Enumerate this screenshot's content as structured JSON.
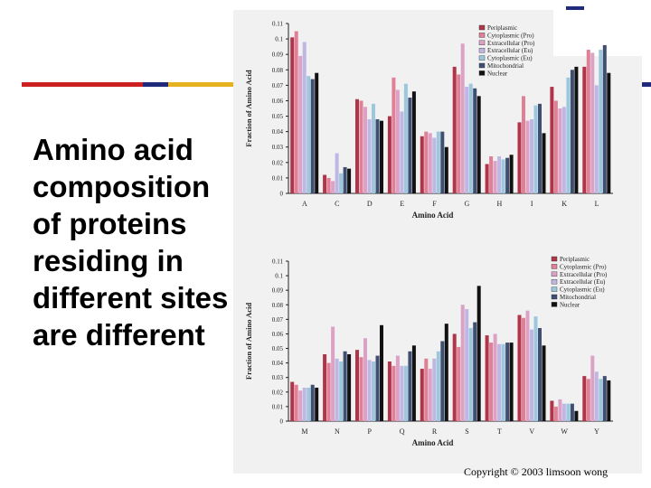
{
  "slide": {
    "title": "Amino acid composition of proteins residing in different sites are different",
    "copyright": "Copyright © 2003 limsoon wong",
    "stripe_colors": [
      "#cc1f1f",
      "#1f2a7a",
      "#e7b21f"
    ]
  },
  "chart_data": [
    {
      "type": "bar",
      "xlabel": "Amino Acid",
      "ylabel": "Fraction of Amino Acid",
      "ylim": [
        0,
        0.11
      ],
      "yticks": [
        "0",
        "0.01",
        "0.02",
        "0.03",
        "0.04",
        "0.05",
        "0.06",
        "0.07",
        "0.08",
        "0.09",
        "0.1",
        "0.11"
      ],
      "legend_position": "top-right",
      "categories": [
        "A",
        "C",
        "D",
        "E",
        "F",
        "G",
        "H",
        "I",
        "K",
        "L"
      ],
      "series": [
        {
          "name": "Periplasmic",
          "color": "#b0344a",
          "values": [
            0.101,
            0.012,
            0.061,
            0.05,
            0.037,
            0.082,
            0.019,
            0.046,
            0.069,
            0.082
          ]
        },
        {
          "name": "Cytoplasmic (Pro)",
          "color": "#e07f96",
          "values": [
            0.105,
            0.01,
            0.06,
            0.075,
            0.04,
            0.077,
            0.024,
            0.063,
            0.06,
            0.093
          ]
        },
        {
          "name": "Extracellular (Pro)",
          "color": "#dba2c6",
          "values": [
            0.089,
            0.008,
            0.056,
            0.067,
            0.039,
            0.097,
            0.021,
            0.047,
            0.055,
            0.091
          ]
        },
        {
          "name": "Extracellular (Eu)",
          "color": "#bfb6e3",
          "values": [
            0.098,
            0.026,
            0.048,
            0.053,
            0.036,
            0.069,
            0.024,
            0.048,
            0.056,
            0.07
          ]
        },
        {
          "name": "Cytoplasmic (Eu)",
          "color": "#9cc7dd",
          "values": [
            0.076,
            0.013,
            0.058,
            0.071,
            0.04,
            0.071,
            0.022,
            0.057,
            0.075,
            0.093
          ]
        },
        {
          "name": "Mitochondrial",
          "color": "#3f4f72",
          "values": [
            0.074,
            0.017,
            0.048,
            0.062,
            0.04,
            0.068,
            0.023,
            0.058,
            0.08,
            0.096
          ]
        },
        {
          "name": "Nuclear",
          "color": "#111111",
          "values": [
            0.078,
            0.016,
            0.047,
            0.066,
            0.03,
            0.063,
            0.025,
            0.039,
            0.082,
            0.078
          ]
        }
      ]
    },
    {
      "type": "bar",
      "xlabel": "Amino Acid",
      "ylabel": "Fraction of Amino Acid",
      "ylim": [
        0,
        0.11
      ],
      "yticks": [
        "0",
        "0.01",
        "0.02",
        "0.03",
        "0.04",
        "0.05",
        "0.06",
        "0.07",
        "0.08",
        "0.09",
        "0.1",
        "0.11"
      ],
      "legend_position": "top-right",
      "categories": [
        "M",
        "N",
        "P",
        "Q",
        "R",
        "S",
        "T",
        "V",
        "W",
        "Y"
      ],
      "series": [
        {
          "name": "Periplasmic",
          "color": "#b0344a",
          "values": [
            0.027,
            0.046,
            0.049,
            0.041,
            0.036,
            0.06,
            0.059,
            0.073,
            0.014,
            0.031
          ]
        },
        {
          "name": "Cytoplasmic (Pro)",
          "color": "#e07f96",
          "values": [
            0.025,
            0.04,
            0.044,
            0.038,
            0.043,
            0.051,
            0.054,
            0.071,
            0.01,
            0.029
          ]
        },
        {
          "name": "Extracellular (Pro)",
          "color": "#dba2c6",
          "values": [
            0.021,
            0.065,
            0.057,
            0.045,
            0.036,
            0.08,
            0.06,
            0.076,
            0.015,
            0.045
          ]
        },
        {
          "name": "Extracellular (Eu)",
          "color": "#bfb6e3",
          "values": [
            0.023,
            0.043,
            0.042,
            0.038,
            0.043,
            0.077,
            0.053,
            0.063,
            0.012,
            0.034
          ]
        },
        {
          "name": "Cytoplasmic (Eu)",
          "color": "#9cc7dd",
          "values": [
            0.023,
            0.041,
            0.041,
            0.038,
            0.048,
            0.064,
            0.053,
            0.072,
            0.012,
            0.029
          ]
        },
        {
          "name": "Mitochondrial",
          "color": "#3f4f72",
          "values": [
            0.025,
            0.048,
            0.045,
            0.048,
            0.055,
            0.068,
            0.054,
            0.064,
            0.012,
            0.031
          ]
        },
        {
          "name": "Nuclear",
          "color": "#111111",
          "values": [
            0.023,
            0.046,
            0.066,
            0.052,
            0.067,
            0.093,
            0.054,
            0.052,
            0.007,
            0.028
          ]
        }
      ]
    }
  ]
}
